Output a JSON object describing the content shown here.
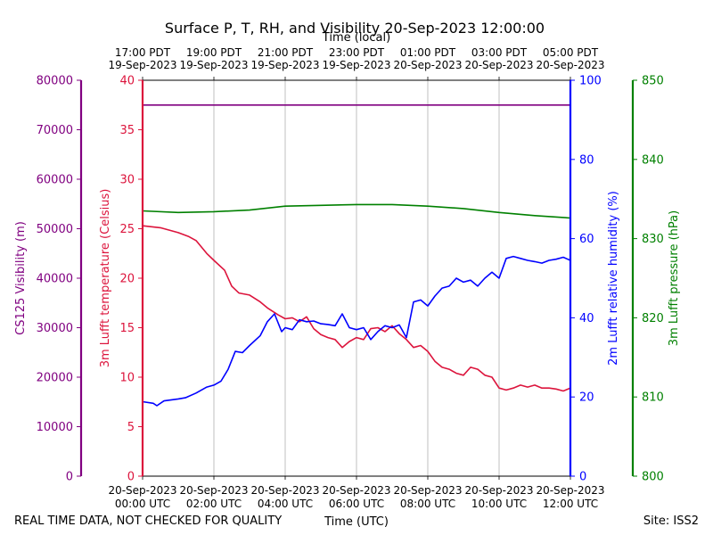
{
  "chart_data": {
    "type": "line",
    "title": "Surface P, T, RH, and Visibility 20-Sep-2023 12:00:00",
    "xlabel": "Time (UTC)",
    "top_xlabel": "Time (local)",
    "x_ticks_utc": [
      {
        "h": 0,
        "l1": "20-Sep-2023",
        "l2": "00:00 UTC"
      },
      {
        "h": 2,
        "l1": "20-Sep-2023",
        "l2": "02:00 UTC"
      },
      {
        "h": 4,
        "l1": "20-Sep-2023",
        "l2": "04:00 UTC"
      },
      {
        "h": 6,
        "l1": "20-Sep-2023",
        "l2": "06:00 UTC"
      },
      {
        "h": 8,
        "l1": "20-Sep-2023",
        "l2": "08:00 UTC"
      },
      {
        "h": 10,
        "l1": "20-Sep-2023",
        "l2": "10:00 UTC"
      },
      {
        "h": 12,
        "l1": "20-Sep-2023",
        "l2": "12:00 UTC"
      }
    ],
    "x_ticks_local": [
      {
        "h": 0,
        "l1": "17:00 PDT",
        "l2": "19-Sep-2023"
      },
      {
        "h": 2,
        "l1": "19:00 PDT",
        "l2": "19-Sep-2023"
      },
      {
        "h": 4,
        "l1": "21:00 PDT",
        "l2": "19-Sep-2023"
      },
      {
        "h": 6,
        "l1": "23:00 PDT",
        "l2": "19-Sep-2023"
      },
      {
        "h": 8,
        "l1": "01:00 PDT",
        "l2": "20-Sep-2023"
      },
      {
        "h": 10,
        "l1": "03:00 PDT",
        "l2": "20-Sep-2023"
      },
      {
        "h": 12,
        "l1": "05:00 PDT",
        "l2": "20-Sep-2023"
      }
    ],
    "xlim": [
      0,
      12
    ],
    "axes": {
      "visibility": {
        "label": "CS125 Visibility (m)",
        "color": "#800080",
        "ylim": [
          0,
          80000
        ],
        "ticks": [
          0,
          10000,
          20000,
          30000,
          40000,
          50000,
          60000,
          70000,
          80000
        ]
      },
      "temperature": {
        "label": "3m Lufft temperature (Celsius)",
        "color": "#dc143c",
        "ylim": [
          0,
          40
        ],
        "ticks": [
          0,
          5,
          10,
          15,
          20,
          25,
          30,
          35,
          40
        ]
      },
      "humidity": {
        "label": "2m Lufft relative humidity (%)",
        "color": "#0000ff",
        "ylim": [
          0,
          100
        ],
        "ticks": [
          0,
          20,
          40,
          60,
          80,
          100
        ]
      },
      "pressure": {
        "label": "3m Lufft pressure (hPa)",
        "color": "#008000",
        "ylim": [
          800,
          850
        ],
        "ticks": [
          800,
          810,
          820,
          830,
          840,
          850
        ]
      }
    },
    "series": [
      {
        "name": "CS125 Visibility",
        "axis": "visibility",
        "color": "#800080",
        "x": [
          0,
          12
        ],
        "y": [
          75000,
          75000
        ]
      },
      {
        "name": "3m Lufft temperature",
        "axis": "temperature",
        "color": "#dc143c",
        "x": [
          0,
          0.5,
          1.0,
          1.3,
          1.5,
          1.8,
          2.0,
          2.3,
          2.5,
          2.7,
          3.0,
          3.3,
          3.5,
          3.8,
          4.0,
          4.2,
          4.4,
          4.6,
          4.8,
          5.0,
          5.2,
          5.4,
          5.6,
          5.8,
          6.0,
          6.2,
          6.4,
          6.6,
          6.8,
          7.0,
          7.2,
          7.4,
          7.6,
          7.8,
          8.0,
          8.2,
          8.4,
          8.6,
          8.8,
          9.0,
          9.2,
          9.4,
          9.6,
          9.8,
          10.0,
          10.2,
          10.4,
          10.6,
          10.8,
          11.0,
          11.2,
          11.4,
          11.6,
          11.8,
          12.0
        ],
        "y": [
          25.3,
          25.1,
          24.6,
          24.2,
          23.8,
          22.5,
          21.8,
          20.8,
          19.2,
          18.5,
          18.3,
          17.6,
          17.0,
          16.3,
          15.9,
          16.0,
          15.6,
          16.1,
          14.9,
          14.3,
          14.0,
          13.8,
          13.0,
          13.6,
          14.0,
          13.8,
          14.9,
          15.0,
          14.6,
          15.2,
          14.4,
          13.8,
          13.0,
          13.2,
          12.6,
          11.6,
          11.0,
          10.8,
          10.4,
          10.2,
          11.0,
          10.8,
          10.2,
          10.0,
          8.9,
          8.7,
          8.9,
          9.2,
          9.0,
          9.2,
          8.9,
          8.9,
          8.8,
          8.6,
          8.9
        ]
      },
      {
        "name": "2m Lufft relative humidity",
        "axis": "humidity",
        "color": "#0000ff",
        "x": [
          0,
          0.3,
          0.4,
          0.6,
          1.0,
          1.2,
          1.5,
          1.8,
          2.0,
          2.2,
          2.4,
          2.6,
          2.8,
          3.0,
          3.3,
          3.5,
          3.7,
          3.9,
          4.0,
          4.2,
          4.4,
          4.6,
          4.8,
          5.0,
          5.2,
          5.4,
          5.6,
          5.8,
          6.0,
          6.2,
          6.4,
          6.6,
          6.8,
          7.0,
          7.2,
          7.4,
          7.6,
          7.8,
          8.0,
          8.2,
          8.4,
          8.6,
          8.8,
          9.0,
          9.2,
          9.4,
          9.6,
          9.8,
          10.0,
          10.2,
          10.4,
          10.6,
          10.8,
          11.0,
          11.2,
          11.4,
          11.6,
          11.8,
          12.0
        ],
        "y": [
          18.8,
          18.4,
          17.8,
          19.0,
          19.5,
          19.8,
          21.0,
          22.5,
          23.0,
          24.0,
          27.0,
          31.5,
          31.2,
          33.0,
          35.5,
          39.0,
          41.0,
          36.5,
          37.5,
          37.0,
          39.5,
          39.0,
          39.2,
          38.5,
          38.3,
          38.0,
          41.0,
          37.5,
          37.0,
          37.5,
          34.5,
          36.5,
          38.0,
          37.5,
          38.2,
          35.0,
          44.0,
          44.5,
          43.0,
          45.5,
          47.5,
          48.0,
          50.0,
          49.0,
          49.5,
          48.0,
          50.0,
          51.5,
          50.0,
          55.0,
          55.5,
          55.0,
          54.5,
          54.2,
          53.8,
          54.5,
          54.8,
          55.3,
          54.5
        ]
      },
      {
        "name": "3m Lufft pressure",
        "axis": "pressure",
        "color": "#008000",
        "x": [
          0,
          1,
          2,
          3,
          4,
          5,
          6,
          6.5,
          7,
          8,
          9,
          10,
          11,
          12
        ],
        "y": [
          833.5,
          833.3,
          833.4,
          833.6,
          834.1,
          834.2,
          834.3,
          834.3,
          834.3,
          834.1,
          833.8,
          833.3,
          832.9,
          832.6
        ]
      }
    ]
  },
  "footer": {
    "disclaimer": "REAL TIME DATA, NOT CHECKED FOR QUALITY",
    "site": "Site: ISS2"
  }
}
